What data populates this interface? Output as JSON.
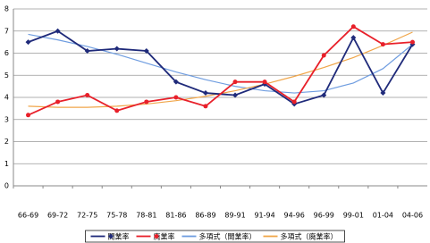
{
  "chart_data": {
    "type": "line",
    "categories": [
      "66-69",
      "69-72",
      "72-75",
      "75-78",
      "78-81",
      "81-86",
      "86-89",
      "89-91",
      "91-94",
      "94-96",
      "96-99",
      "99-01",
      "01-04",
      "04-06"
    ],
    "series": [
      {
        "name": "開業率",
        "color": "#1f2a7a",
        "marker": "diamond",
        "values": [
          6.5,
          7.0,
          6.1,
          6.2,
          6.1,
          4.7,
          4.2,
          4.1,
          4.6,
          3.7,
          4.1,
          6.7,
          4.2,
          6.4
        ]
      },
      {
        "name": "廃業率",
        "color": "#e8202a",
        "marker": "circle",
        "values": [
          3.2,
          3.8,
          4.1,
          3.4,
          3.8,
          4.0,
          3.6,
          4.7,
          4.7,
          3.8,
          5.9,
          7.2,
          6.4,
          6.5
        ]
      },
      {
        "name": "多項式（開業率）",
        "color": "#6f9de0",
        "marker": "none",
        "values": [
          6.85,
          6.6,
          6.3,
          5.95,
          5.55,
          5.15,
          4.8,
          4.5,
          4.3,
          4.2,
          4.3,
          4.65,
          5.3,
          6.4
        ]
      },
      {
        "name": "多項式（廃業率）",
        "color": "#f0a64a",
        "marker": "none",
        "values": [
          3.6,
          3.55,
          3.55,
          3.6,
          3.7,
          3.85,
          4.05,
          4.3,
          4.6,
          4.95,
          5.35,
          5.8,
          6.35,
          6.95
        ]
      }
    ],
    "ylim": [
      0,
      8
    ],
    "yticks": [
      0,
      1,
      2,
      3,
      4,
      5,
      6,
      7,
      8
    ],
    "grid": true
  }
}
